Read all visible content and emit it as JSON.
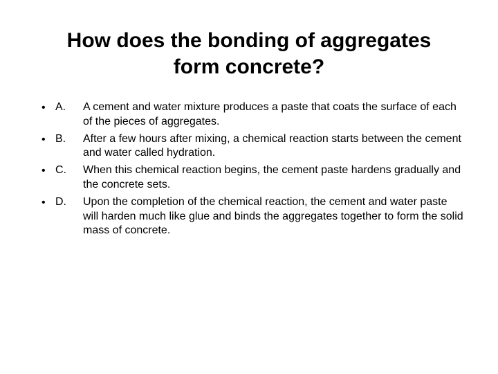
{
  "title": "How does the bonding of aggregates form concrete?",
  "background_color": "#ffffff",
  "text_color": "#000000",
  "title_fontsize": 30,
  "body_fontsize": 16,
  "items": [
    {
      "letter": "A.",
      "text": "A cement and water mixture produces a paste that coats the surface of each of the pieces of aggregates."
    },
    {
      "letter": "B.",
      "text": "After a few hours after mixing, a chemical reaction starts between the cement and water called hydration."
    },
    {
      "letter": "C.",
      "text": "When this chemical reaction begins, the cement paste hardens gradually and the concrete sets."
    },
    {
      "letter": "D.",
      "text": "Upon the completion of the chemical reaction, the cement and water paste will harden much like glue and binds the aggregates together to form the solid mass of concrete."
    }
  ]
}
